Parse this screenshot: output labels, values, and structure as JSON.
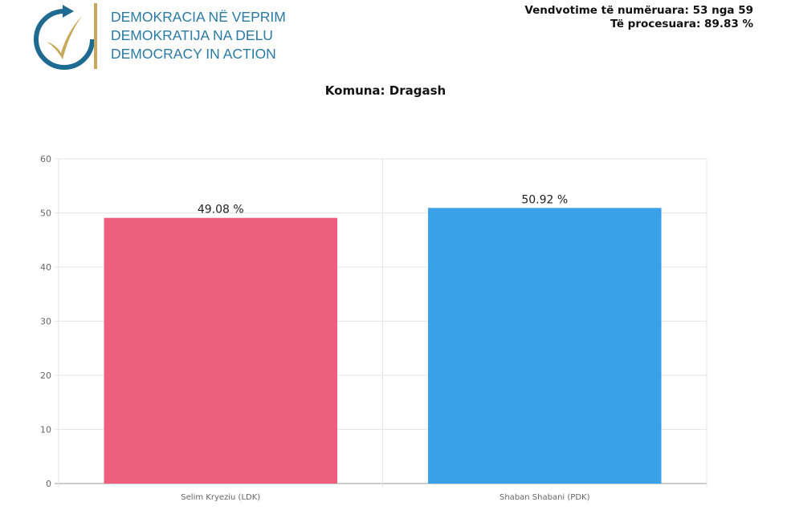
{
  "header": {
    "org_lines": [
      "DEMOKRACIA NË VEPRIM",
      "DEMOKRATIJA NA DELU",
      "DEMOCRACY IN ACTION"
    ],
    "counted": "Vendvotime të numëruara: 53 nga 59",
    "processed": "Të procesuara: 89.83 %"
  },
  "chart_data": {
    "type": "bar",
    "title": "Komuna: Dragash",
    "categories": [
      "Selim Kryeziu (LDK)",
      "Shaban Shabani (PDK)"
    ],
    "values": [
      49.08,
      50.92
    ],
    "labels": [
      "49.08 %",
      "50.92 %"
    ],
    "colors": [
      "#ee5f7f",
      "#3aa0e8"
    ],
    "ylim": [
      0,
      60
    ],
    "yticks": [
      0,
      10,
      20,
      30,
      40,
      50,
      60
    ],
    "grid": true
  }
}
